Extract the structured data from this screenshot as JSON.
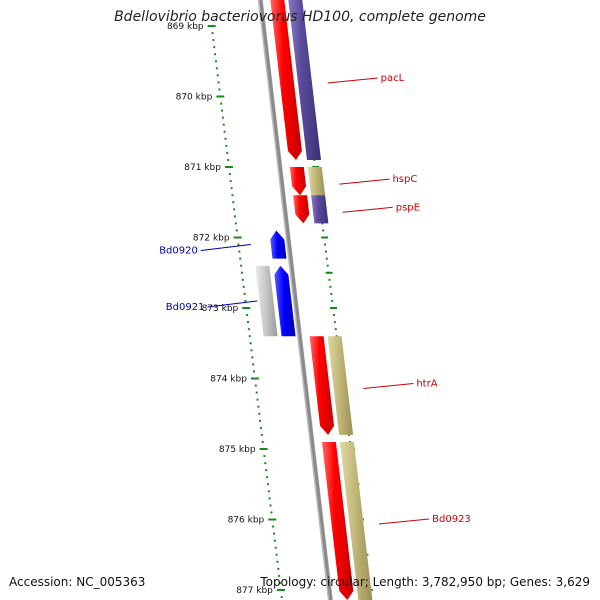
{
  "title": "Bdellovibrio bacteriovorus HD100, complete genome",
  "accession": "Accession: NC_005363",
  "summary": "Topology: circular; Length: 3,782,950 bp; Genes: 3,629",
  "scale": {
    "ticks": [
      {
        "kb": 869,
        "label": "869 kbp"
      },
      {
        "kb": 870,
        "label": "870 kbp"
      },
      {
        "kb": 871,
        "label": "871 kbp"
      },
      {
        "kb": 872,
        "label": "872 kbp"
      },
      {
        "kb": 873,
        "label": "873 kbp"
      },
      {
        "kb": 874,
        "label": "874 kbp"
      },
      {
        "kb": 875,
        "label": "875 kbp"
      },
      {
        "kb": 876,
        "label": "876 kbp"
      },
      {
        "kb": 877,
        "label": "877 kbp"
      }
    ]
  },
  "colors": {
    "forward_cds": "#ff0000",
    "forward_cog_a": "#5a4a9a",
    "forward_cog_b": "#c2b87a",
    "reverse_cds": "#0000ff",
    "reverse_cog": "#bdbdbd",
    "backbone": "#8a8a8a",
    "tick": "#1a8a1a",
    "forward_label": "#cc0000",
    "reverse_label": "#0000aa"
  },
  "genes": [
    {
      "name": "pacL",
      "strand": "forward",
      "start_kb": 868.6,
      "end_kb": 870.9,
      "cog": "forward_cog_a"
    },
    {
      "name": "hspC",
      "strand": "forward",
      "start_kb": 871.0,
      "end_kb": 871.4,
      "cog": "forward_cog_b"
    },
    {
      "name": "pspE",
      "strand": "forward",
      "start_kb": 871.4,
      "end_kb": 871.8,
      "cog": "forward_cog_a"
    },
    {
      "name": "Bd0920",
      "strand": "reverse",
      "start_kb": 871.9,
      "end_kb": 872.3,
      "cog": null
    },
    {
      "name": "Bd0921",
      "strand": "reverse",
      "start_kb": 872.4,
      "end_kb": 873.4,
      "cog": "reverse_cog"
    },
    {
      "name": "htrA",
      "strand": "forward",
      "start_kb": 873.4,
      "end_kb": 874.8,
      "cog": "forward_cog_b"
    },
    {
      "name": "Bd0923",
      "strand": "forward",
      "start_kb": 874.9,
      "end_kb": 877.2,
      "cog": "forward_cog_b"
    }
  ]
}
